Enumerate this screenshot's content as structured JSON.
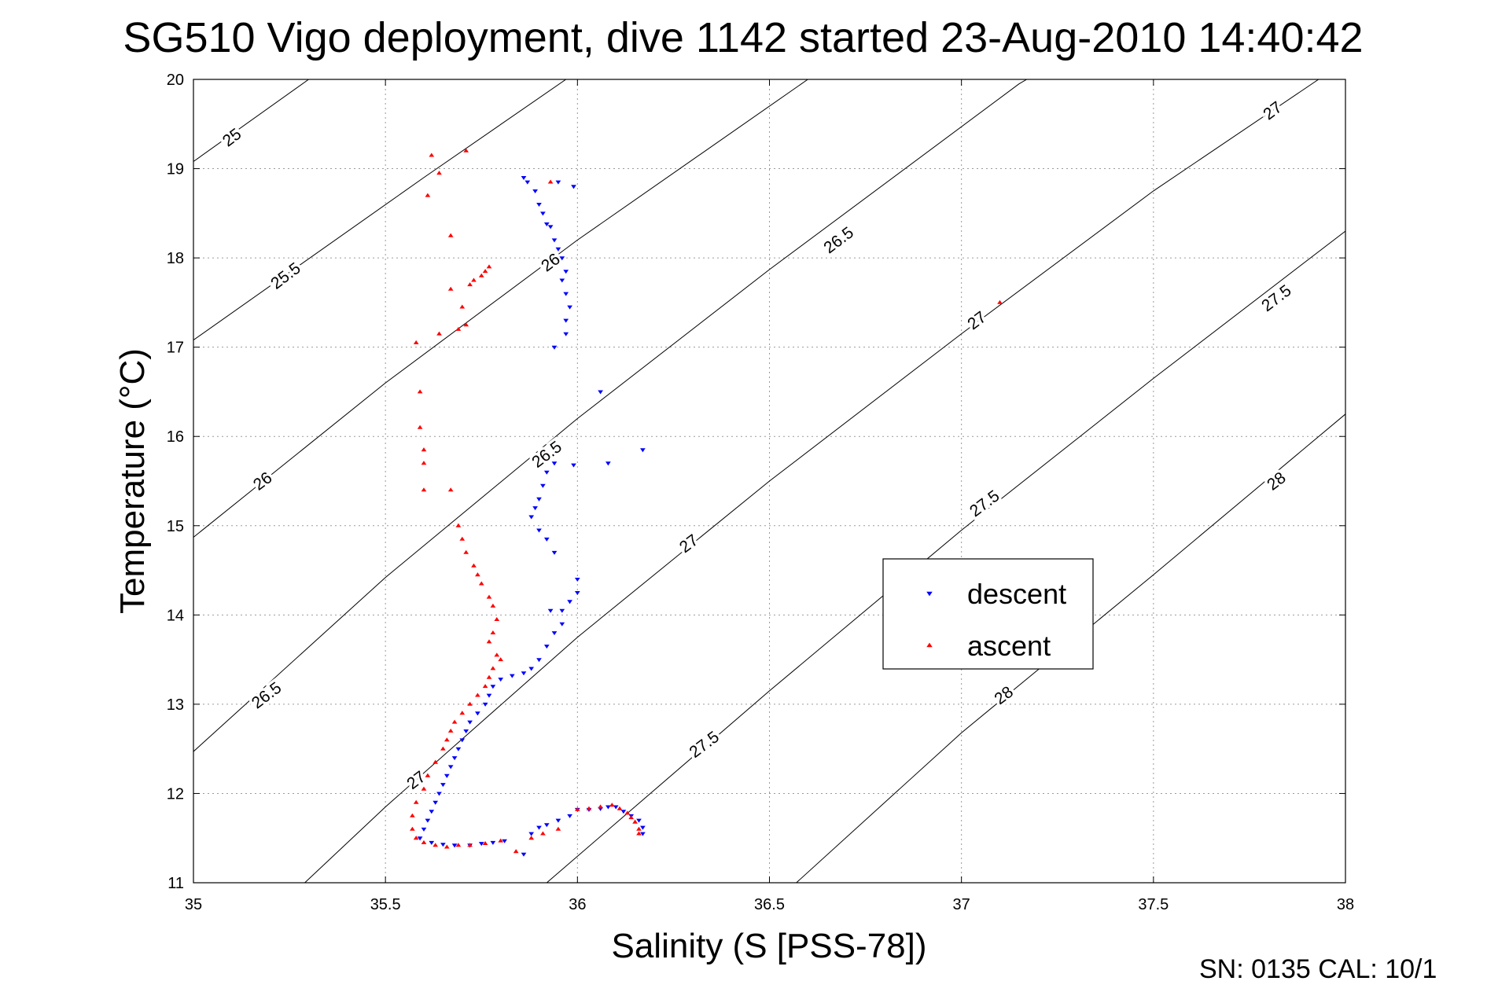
{
  "title": "SG510 Vigo deployment, dive 1142 started 23-Aug-2010 14:40:42",
  "footer": "SN: 0135  CAL: 10/1",
  "chart_data": {
    "type": "scatter",
    "xlabel": "Salinity (S [PSS-78])",
    "ylabel": "Temperature (°C)",
    "xlim": [
      35,
      38
    ],
    "ylim": [
      11,
      20
    ],
    "xticks": [
      35,
      35.5,
      36,
      36.5,
      37,
      37.5,
      38
    ],
    "yticks": [
      11,
      12,
      13,
      14,
      15,
      16,
      17,
      18,
      19,
      20
    ],
    "xtick_labels": [
      "35",
      "35.5",
      "36",
      "36.5",
      "37",
      "37.5",
      "38"
    ],
    "ytick_labels": [
      "11",
      "12",
      "13",
      "14",
      "15",
      "16",
      "17",
      "18",
      "19",
      "20"
    ],
    "grid": true,
    "legend_position": "center-right",
    "density_contours": [
      {
        "label": "25",
        "points": [
          [
            35,
            19.08
          ],
          [
            35.3,
            20
          ]
        ],
        "label_at": [
          [
            35.1,
            19.35
          ]
        ]
      },
      {
        "label": "25.5",
        "points": [
          [
            35,
            17.08
          ],
          [
            35.6,
            18.9
          ],
          [
            35.97,
            20
          ]
        ],
        "label_at": [
          [
            35.24,
            17.8
          ]
        ]
      },
      {
        "label": "26",
        "points": [
          [
            35,
            14.87
          ],
          [
            35.5,
            16.6
          ],
          [
            36,
            18.2
          ],
          [
            36.6,
            20
          ]
        ],
        "label_at": [
          [
            35.18,
            15.5
          ],
          [
            35.93,
            17.95
          ]
        ]
      },
      {
        "label": "26.5",
        "points": [
          [
            35,
            12.47
          ],
          [
            35.5,
            14.42
          ],
          [
            36,
            16.2
          ],
          [
            36.5,
            17.87
          ],
          [
            37.15,
            19.95
          ],
          [
            37.17,
            20
          ]
        ],
        "label_at": [
          [
            35.19,
            13.1
          ],
          [
            35.92,
            15.8
          ],
          [
            36.68,
            18.2
          ]
        ]
      },
      {
        "label": "27",
        "points": [
          [
            35.29,
            11
          ],
          [
            35.5,
            11.85
          ],
          [
            36,
            13.75
          ],
          [
            36.5,
            15.5
          ],
          [
            37,
            17.15
          ],
          [
            37.5,
            18.75
          ],
          [
            37.93,
            20
          ]
        ],
        "label_at": [
          [
            35.58,
            12.15
          ],
          [
            36.29,
            14.8
          ],
          [
            37.04,
            17.3
          ],
          [
            37.81,
            19.65
          ]
        ]
      },
      {
        "label": "27.5",
        "points": [
          [
            35.92,
            11
          ],
          [
            36.5,
            13.15
          ],
          [
            37,
            14.95
          ],
          [
            37.5,
            16.65
          ],
          [
            38,
            18.3
          ]
        ],
        "label_at": [
          [
            36.33,
            12.55
          ],
          [
            37.06,
            15.25
          ],
          [
            37.82,
            17.55
          ]
        ]
      },
      {
        "label": "28",
        "points": [
          [
            36.57,
            11
          ],
          [
            37,
            12.68
          ],
          [
            37.5,
            14.45
          ],
          [
            38,
            16.25
          ]
        ],
        "label_at": [
          [
            37.11,
            13.1
          ],
          [
            37.82,
            15.5
          ]
        ]
      }
    ],
    "series": [
      {
        "name": "descent",
        "marker": "triangle-down",
        "color": "#0000ff",
        "points": [
          [
            35.86,
            18.9
          ],
          [
            35.87,
            18.85
          ],
          [
            35.89,
            18.75
          ],
          [
            35.9,
            18.6
          ],
          [
            35.91,
            18.5
          ],
          [
            35.92,
            18.38
          ],
          [
            35.93,
            18.35
          ],
          [
            35.94,
            18.2
          ],
          [
            35.95,
            18.1
          ],
          [
            35.96,
            18.0
          ],
          [
            35.97,
            17.85
          ],
          [
            35.96,
            17.75
          ],
          [
            35.97,
            17.6
          ],
          [
            35.98,
            17.45
          ],
          [
            35.97,
            17.3
          ],
          [
            35.97,
            17.15
          ],
          [
            35.94,
            17.0
          ],
          [
            35.95,
            18.85
          ],
          [
            35.99,
            18.8
          ],
          [
            36.06,
            16.5
          ],
          [
            36.17,
            15.85
          ],
          [
            36.08,
            15.7
          ],
          [
            35.99,
            15.68
          ],
          [
            35.94,
            15.7
          ],
          [
            35.92,
            15.6
          ],
          [
            35.91,
            15.45
          ],
          [
            35.9,
            15.3
          ],
          [
            35.89,
            15.2
          ],
          [
            35.88,
            15.1
          ],
          [
            35.9,
            14.95
          ],
          [
            35.92,
            14.85
          ],
          [
            35.94,
            14.7
          ],
          [
            36.0,
            14.4
          ],
          [
            36.0,
            14.25
          ],
          [
            35.98,
            14.15
          ],
          [
            35.96,
            14.05
          ],
          [
            35.93,
            14.05
          ],
          [
            35.96,
            13.9
          ],
          [
            35.94,
            13.8
          ],
          [
            35.92,
            13.65
          ],
          [
            35.9,
            13.5
          ],
          [
            35.88,
            13.4
          ],
          [
            35.86,
            13.35
          ],
          [
            35.83,
            13.32
          ],
          [
            35.8,
            13.28
          ],
          [
            35.78,
            13.2
          ],
          [
            35.77,
            13.1
          ],
          [
            35.76,
            13.0
          ],
          [
            35.74,
            12.9
          ],
          [
            35.72,
            12.8
          ],
          [
            35.71,
            12.7
          ],
          [
            35.7,
            12.6
          ],
          [
            35.69,
            12.5
          ],
          [
            35.68,
            12.4
          ],
          [
            35.67,
            12.3
          ],
          [
            35.66,
            12.2
          ],
          [
            35.65,
            12.1
          ],
          [
            35.64,
            12.0
          ],
          [
            35.63,
            11.9
          ],
          [
            35.62,
            11.8
          ],
          [
            35.61,
            11.7
          ],
          [
            35.6,
            11.6
          ],
          [
            35.59,
            11.5
          ],
          [
            35.62,
            11.45
          ],
          [
            35.65,
            11.43
          ],
          [
            35.68,
            11.42
          ],
          [
            35.72,
            11.42
          ],
          [
            35.75,
            11.44
          ],
          [
            35.78,
            11.45
          ],
          [
            35.81,
            11.47
          ],
          [
            35.86,
            11.32
          ],
          [
            35.88,
            11.55
          ],
          [
            35.9,
            11.62
          ],
          [
            35.92,
            11.65
          ],
          [
            35.95,
            11.7
          ],
          [
            35.98,
            11.75
          ],
          [
            36.0,
            11.82
          ],
          [
            36.03,
            11.82
          ],
          [
            36.06,
            11.83
          ],
          [
            36.08,
            11.85
          ],
          [
            36.1,
            11.85
          ],
          [
            36.12,
            11.8
          ],
          [
            36.14,
            11.75
          ],
          [
            36.16,
            11.7
          ],
          [
            36.17,
            11.62
          ],
          [
            36.17,
            11.55
          ]
        ]
      },
      {
        "name": "ascent",
        "marker": "triangle-up",
        "color": "#ff0000",
        "points": [
          [
            35.62,
            19.15
          ],
          [
            35.64,
            18.95
          ],
          [
            35.71,
            19.2
          ],
          [
            35.61,
            18.7
          ],
          [
            35.67,
            18.25
          ],
          [
            35.77,
            17.9
          ],
          [
            35.76,
            17.85
          ],
          [
            35.75,
            17.8
          ],
          [
            35.73,
            17.75
          ],
          [
            35.72,
            17.7
          ],
          [
            35.67,
            17.65
          ],
          [
            35.7,
            17.45
          ],
          [
            35.71,
            17.25
          ],
          [
            35.69,
            17.2
          ],
          [
            35.64,
            17.15
          ],
          [
            35.58,
            17.05
          ],
          [
            35.93,
            18.85
          ],
          [
            35.59,
            16.5
          ],
          [
            35.59,
            16.1
          ],
          [
            35.6,
            15.85
          ],
          [
            35.6,
            15.7
          ],
          [
            35.6,
            15.4
          ],
          [
            35.67,
            15.4
          ],
          [
            35.69,
            15.0
          ],
          [
            35.7,
            14.85
          ],
          [
            35.71,
            14.7
          ],
          [
            35.73,
            14.55
          ],
          [
            35.74,
            14.45
          ],
          [
            35.75,
            14.35
          ],
          [
            35.77,
            14.2
          ],
          [
            35.78,
            14.1
          ],
          [
            35.79,
            13.95
          ],
          [
            35.78,
            13.8
          ],
          [
            35.77,
            13.7
          ],
          [
            35.79,
            13.55
          ],
          [
            35.8,
            13.5
          ],
          [
            35.78,
            13.4
          ],
          [
            35.77,
            13.3
          ],
          [
            35.76,
            13.2
          ],
          [
            35.74,
            13.1
          ],
          [
            35.72,
            13.0
          ],
          [
            35.7,
            12.9
          ],
          [
            35.68,
            12.8
          ],
          [
            35.67,
            12.7
          ],
          [
            35.66,
            12.6
          ],
          [
            35.65,
            12.5
          ],
          [
            35.63,
            12.35
          ],
          [
            35.61,
            12.2
          ],
          [
            35.6,
            12.05
          ],
          [
            35.58,
            11.9
          ],
          [
            35.57,
            11.75
          ],
          [
            35.57,
            11.6
          ],
          [
            35.58,
            11.5
          ],
          [
            35.6,
            11.45
          ],
          [
            35.63,
            11.42
          ],
          [
            35.66,
            11.4
          ],
          [
            35.69,
            11.42
          ],
          [
            35.72,
            11.42
          ],
          [
            35.76,
            11.44
          ],
          [
            35.8,
            11.47
          ],
          [
            35.84,
            11.35
          ],
          [
            35.88,
            11.5
          ],
          [
            35.91,
            11.55
          ],
          [
            35.95,
            11.6
          ],
          [
            36.0,
            11.82
          ],
          [
            36.03,
            11.83
          ],
          [
            36.06,
            11.85
          ],
          [
            36.09,
            11.87
          ],
          [
            36.11,
            11.83
          ],
          [
            36.13,
            11.78
          ],
          [
            36.14,
            11.73
          ],
          [
            36.15,
            11.68
          ],
          [
            36.16,
            11.6
          ],
          [
            36.16,
            11.55
          ],
          [
            37.1,
            17.5
          ]
        ]
      }
    ]
  }
}
